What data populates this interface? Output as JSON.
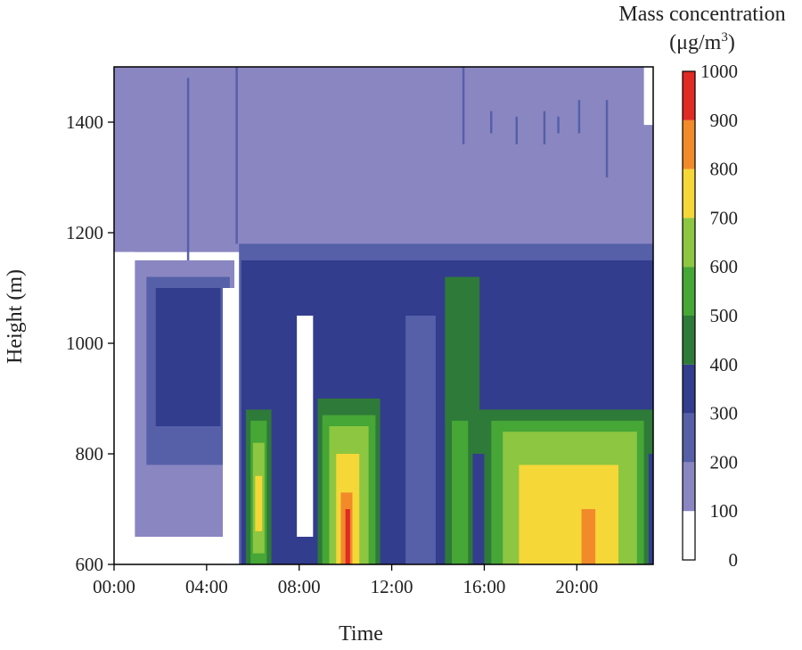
{
  "chart_data": {
    "type": "heatmap",
    "title": "",
    "xlabel": "Time",
    "ylabel": "Height (m)",
    "x_ticks": [
      "00:00",
      "04:00",
      "08:00",
      "12:00",
      "16:00",
      "20:00"
    ],
    "x_tick_hours": [
      0,
      4,
      8,
      12,
      16,
      20
    ],
    "x_range_hours": [
      0,
      23.3
    ],
    "y_ticks": [
      600,
      800,
      1000,
      1200,
      1400
    ],
    "y_range": [
      600,
      1500
    ],
    "colorbar": {
      "title_line1": "Mass concentration",
      "title_line2": "(μg/m",
      "title_sup": "3",
      "title_line2_end": ")",
      "tick_labels": [
        "0",
        "100",
        "200",
        "300",
        "400",
        "500",
        "600",
        "700",
        "800",
        "900",
        "1000"
      ],
      "bins": [
        {
          "from": 0,
          "to": 100,
          "color": "#ffffff"
        },
        {
          "from": 100,
          "to": 200,
          "color": "#8a86c2"
        },
        {
          "from": 200,
          "to": 300,
          "color": "#5560a8"
        },
        {
          "from": 300,
          "to": 400,
          "color": "#333d8e"
        },
        {
          "from": 400,
          "to": 500,
          "color": "#2e7a38"
        },
        {
          "from": 500,
          "to": 600,
          "color": "#46a636"
        },
        {
          "from": 600,
          "to": 700,
          "color": "#8dc640"
        },
        {
          "from": 700,
          "to": 800,
          "color": "#f5d738"
        },
        {
          "from": 800,
          "to": 900,
          "color": "#f28a2a"
        },
        {
          "from": 900,
          "to": 1000,
          "color": "#e02a24"
        }
      ]
    },
    "regions": [
      {
        "x": [
          0,
          23.3
        ],
        "y": [
          1165,
          1500
        ],
        "level": 100
      },
      {
        "x": [
          22.9,
          23.3
        ],
        "y": [
          1395,
          1500
        ],
        "level": 0
      },
      {
        "x": [
          0,
          0.9
        ],
        "y": [
          600,
          1165
        ],
        "level": 0
      },
      {
        "x": [
          0.9,
          5.2
        ],
        "y": [
          650,
          1150
        ],
        "level": 100
      },
      {
        "x": [
          1.4,
          5.0
        ],
        "y": [
          780,
          1120
        ],
        "level": 200
      },
      {
        "x": [
          1.8,
          4.6
        ],
        "y": [
          850,
          1100
        ],
        "level": 300
      },
      {
        "x": [
          4.7,
          5.4
        ],
        "y": [
          600,
          1100
        ],
        "level": 0
      },
      {
        "x": [
          5.4,
          23.3
        ],
        "y": [
          600,
          1180
        ],
        "level": 200
      },
      {
        "x": [
          5.5,
          23.3
        ],
        "y": [
          600,
          1150
        ],
        "level": 300
      },
      {
        "x": [
          5.6,
          8.1
        ],
        "y": [
          600,
          1130
        ],
        "level": 300
      },
      {
        "x": [
          7.9,
          8.6
        ],
        "y": [
          650,
          1050
        ],
        "level": 0
      },
      {
        "x": [
          12.6,
          13.9
        ],
        "y": [
          600,
          1050
        ],
        "level": 200
      },
      {
        "x": [
          14.3,
          15.8
        ],
        "y": [
          860,
          1120
        ],
        "level": 400
      },
      {
        "x": [
          15.2,
          23.3
        ],
        "y": [
          800,
          880
        ],
        "level": 400
      },
      {
        "x": [
          5.7,
          6.8
        ],
        "y": [
          600,
          880
        ],
        "level": 400
      },
      {
        "x": [
          5.9,
          6.6
        ],
        "y": [
          600,
          860
        ],
        "level": 500
      },
      {
        "x": [
          6.0,
          6.5
        ],
        "y": [
          620,
          820
        ],
        "level": 600
      },
      {
        "x": [
          6.1,
          6.4
        ],
        "y": [
          660,
          760
        ],
        "level": 700
      },
      {
        "x": [
          8.8,
          11.5
        ],
        "y": [
          600,
          900
        ],
        "level": 400
      },
      {
        "x": [
          9.0,
          11.3
        ],
        "y": [
          600,
          870
        ],
        "level": 500
      },
      {
        "x": [
          9.3,
          11.0
        ],
        "y": [
          600,
          850
        ],
        "level": 600
      },
      {
        "x": [
          9.6,
          10.6
        ],
        "y": [
          600,
          800
        ],
        "level": 700
      },
      {
        "x": [
          9.8,
          10.3
        ],
        "y": [
          600,
          730
        ],
        "level": 800
      },
      {
        "x": [
          10.0,
          10.2
        ],
        "y": [
          600,
          700
        ],
        "level": 900
      },
      {
        "x": [
          14.3,
          15.5
        ],
        "y": [
          600,
          900
        ],
        "level": 400
      },
      {
        "x": [
          14.6,
          15.3
        ],
        "y": [
          600,
          860
        ],
        "level": 500
      },
      {
        "x": [
          16.0,
          23.1
        ],
        "y": [
          600,
          870
        ],
        "level": 400
      },
      {
        "x": [
          16.3,
          22.9
        ],
        "y": [
          600,
          860
        ],
        "level": 500
      },
      {
        "x": [
          16.8,
          22.6
        ],
        "y": [
          600,
          840
        ],
        "level": 600
      },
      {
        "x": [
          17.5,
          21.8
        ],
        "y": [
          600,
          780
        ],
        "level": 700
      },
      {
        "x": [
          20.2,
          20.8
        ],
        "y": [
          600,
          700
        ],
        "level": 800
      }
    ],
    "stripes": [
      {
        "x": 3.2,
        "y": [
          1150,
          1480
        ],
        "level": 200
      },
      {
        "x": 5.3,
        "y": [
          1180,
          1500
        ],
        "level": 200
      },
      {
        "x": 15.1,
        "y": [
          1360,
          1500
        ],
        "level": 200
      },
      {
        "x": 16.3,
        "y": [
          1380,
          1420
        ],
        "level": 200
      },
      {
        "x": 17.4,
        "y": [
          1360,
          1410
        ],
        "level": 200
      },
      {
        "x": 18.6,
        "y": [
          1360,
          1420
        ],
        "level": 200
      },
      {
        "x": 19.2,
        "y": [
          1380,
          1410
        ],
        "level": 200
      },
      {
        "x": 20.1,
        "y": [
          1380,
          1440
        ],
        "level": 200
      },
      {
        "x": 21.3,
        "y": [
          1300,
          1440
        ],
        "level": 200
      }
    ]
  }
}
